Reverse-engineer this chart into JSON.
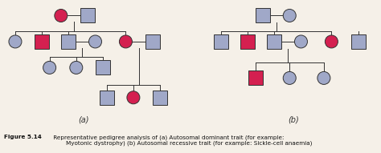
{
  "bg_color": "#f5f0e8",
  "affected_color": "#d42050",
  "unaffected_color": "#a0a8c8",
  "line_color": "#333333",
  "caption_bold": "Figure 5.14",
  "caption_normal": " Representative pedigree analysis of (a) Autosomal dominant trait (for example:\n        Myotonic dystrophy) (b) Autosomal recessive trait (for example: Sickle-cell anaemia)",
  "label_a": "(a)",
  "label_b": "(b)"
}
